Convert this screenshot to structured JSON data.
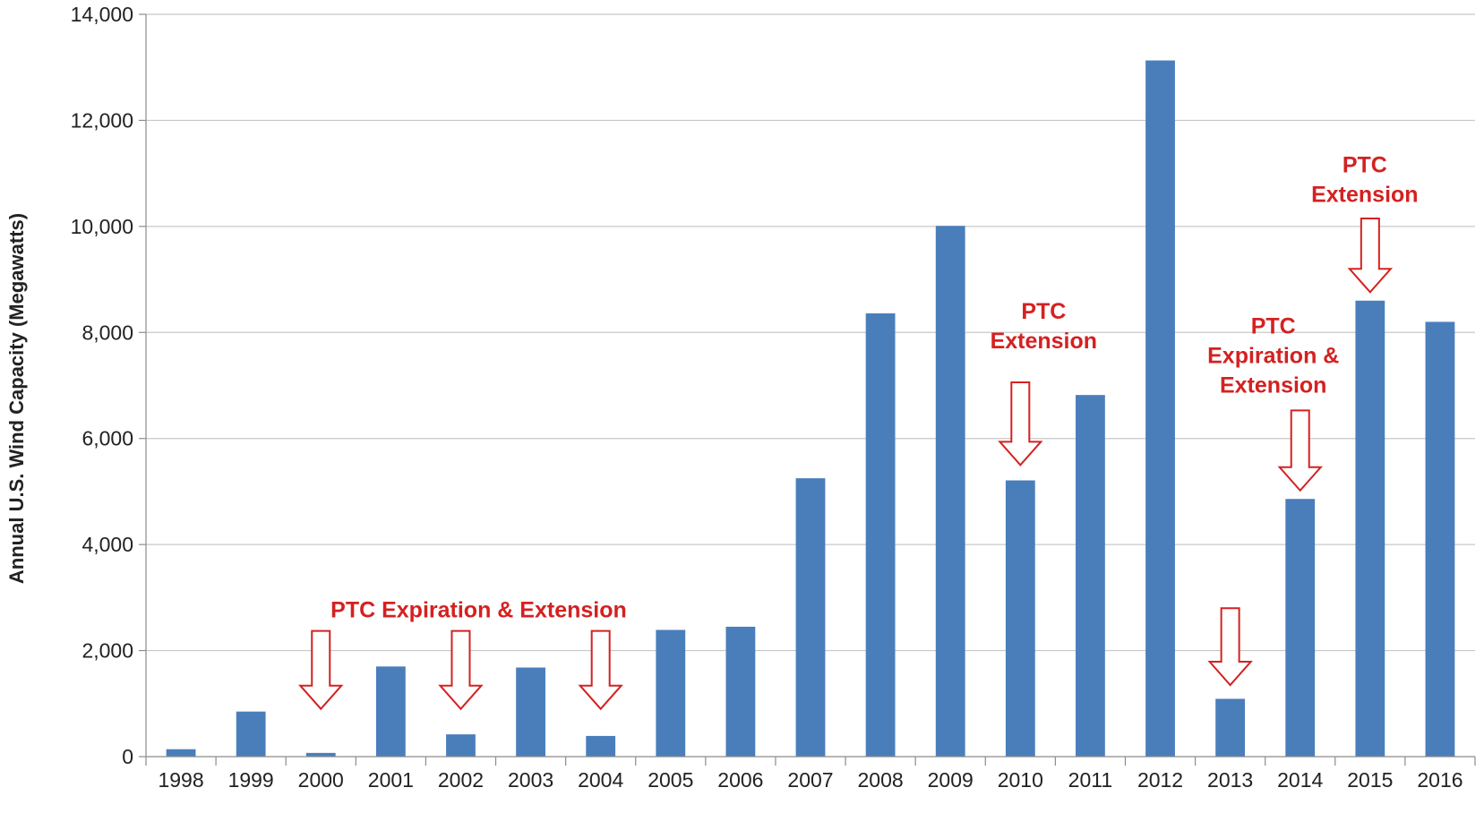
{
  "chart_data": {
    "type": "bar",
    "categories": [
      "1998",
      "1999",
      "2000",
      "2001",
      "2002",
      "2003",
      "2004",
      "2005",
      "2006",
      "2007",
      "2008",
      "2009",
      "2010",
      "2011",
      "2012",
      "2013",
      "2014",
      "2015",
      "2016"
    ],
    "values": [
      140,
      850,
      70,
      1700,
      420,
      1680,
      390,
      2390,
      2450,
      5250,
      8360,
      10010,
      5210,
      6820,
      13130,
      1090,
      4860,
      8600,
      8200
    ],
    "xlabel": "",
    "ylabel": "Annual U.S. Wind Capacity (Megawatts)",
    "ylim": [
      0,
      14000
    ],
    "yticks": [
      "0",
      "2,000",
      "4,000",
      "6,000",
      "8,000",
      "10,000",
      "12,000",
      "14,000"
    ],
    "grid": true,
    "bar_color": "#4a7ebb",
    "annotation_color": "#d42121",
    "annotations": [
      {
        "lines": [
          "PTC Expiration & Extension"
        ],
        "arrow_years": [
          "2000",
          "2002",
          "2004"
        ]
      },
      {
        "lines": [
          "PTC",
          "Extension"
        ],
        "arrow_years": [
          "2010"
        ]
      },
      {
        "lines": [
          "PTC",
          "Expiration &",
          "Extension"
        ],
        "arrow_years": [
          "2014"
        ]
      },
      {
        "lines": [],
        "arrow_years": [
          "2013"
        ]
      },
      {
        "lines": [
          "PTC",
          "Extension"
        ],
        "arrow_years": [
          "2015"
        ]
      }
    ]
  }
}
